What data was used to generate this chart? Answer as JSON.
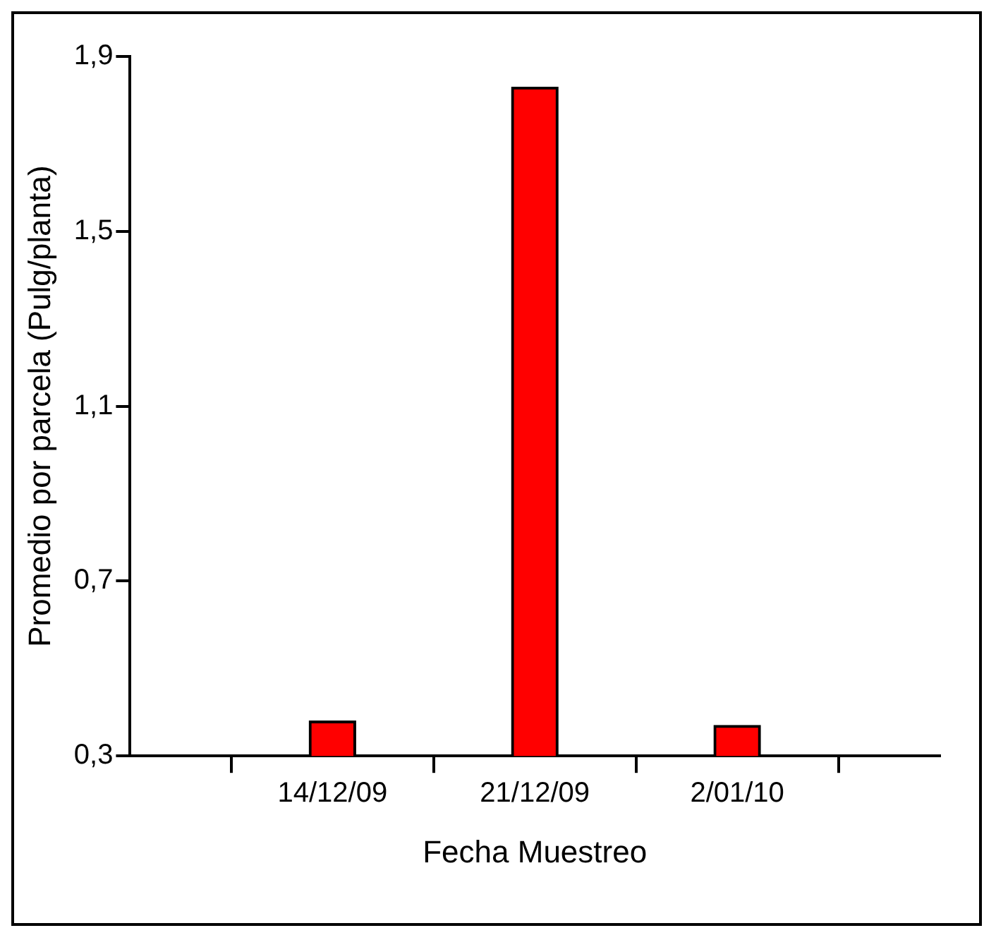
{
  "chart_data": {
    "type": "bar",
    "xlabel": "Fecha Muestreo",
    "ylabel": "Promedio por parcela (Pulg/planta)",
    "categories": [
      null,
      "14/12/09",
      "21/12/09",
      "2/01/10",
      null
    ],
    "values": [
      null,
      0.38,
      1.83,
      0.37,
      null
    ],
    "color": "#ff0000",
    "ylim": [
      0.3,
      1.9
    ],
    "yticks": [
      {
        "value": 0.3,
        "label": "0,3"
      },
      {
        "value": 0.7,
        "label": "0,7"
      },
      {
        "value": 1.1,
        "label": "1,1"
      },
      {
        "value": 1.5,
        "label": "1,5"
      },
      {
        "value": 1.9,
        "label": "1,9"
      }
    ],
    "grid": false,
    "legend": false
  }
}
